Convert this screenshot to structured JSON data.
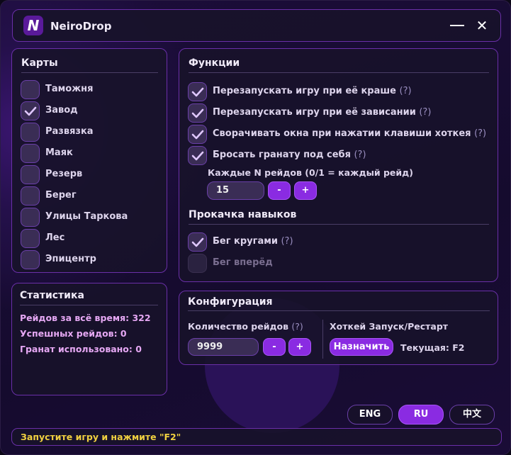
{
  "app": {
    "title": "NeiroDrop",
    "logo_letter": "N",
    "minimize_icon": "minimize-icon",
    "close_icon": "close-icon"
  },
  "maps": {
    "title": "Карты",
    "items": [
      {
        "label": "Таможня",
        "checked": false
      },
      {
        "label": "Завод",
        "checked": true
      },
      {
        "label": "Развязка",
        "checked": false
      },
      {
        "label": "Маяк",
        "checked": false
      },
      {
        "label": "Резерв",
        "checked": false
      },
      {
        "label": "Берег",
        "checked": false
      },
      {
        "label": "Улицы Таркова",
        "checked": false
      },
      {
        "label": "Лес",
        "checked": false
      },
      {
        "label": "Эпицентр",
        "checked": false
      }
    ]
  },
  "functions": {
    "title": "Функции",
    "help": "(?)",
    "items": [
      {
        "label": "Перезапускать игру при её краше",
        "checked": true
      },
      {
        "label": "Перезапускать игру при её зависании",
        "checked": true
      },
      {
        "label": "Сворачивать окна при нажатии клавиши хоткея",
        "checked": true
      },
      {
        "label": "Бросать гранату под себя",
        "checked": true
      }
    ],
    "every_n_label": "Каждые N рейдов (0/1 = каждый рейд)",
    "every_n_value": "15",
    "minus": "-",
    "plus": "+",
    "skills_title": "Прокачка навыков",
    "skills": [
      {
        "label": "Бег кругами",
        "checked": true,
        "help": true
      },
      {
        "label": "Бег вперёд",
        "checked": false,
        "disabled": true
      }
    ]
  },
  "stats": {
    "title": "Статистика",
    "lines": [
      "Рейдов за всё время: 322",
      "Успешных рейдов: 0",
      "Гранат использовано: 0"
    ]
  },
  "config": {
    "title": "Конфигурация",
    "raids_label": "Количество рейдов",
    "help": "(?)",
    "raids_value": "9999",
    "minus": "-",
    "plus": "+",
    "hotkey_label": "Хоткей Запуск/Рестарт",
    "assign": "Назначить",
    "current": "Текущая: F2"
  },
  "languages": [
    {
      "label": "ENG",
      "active": false
    },
    {
      "label": "RU",
      "active": true
    },
    {
      "label": "中文",
      "active": false
    }
  ],
  "status": "Запустите игру и нажмите \"F2\"",
  "colors": {
    "accent": "#8a2be2",
    "border": "#6a2fa8",
    "status": "#f0d040",
    "stats": "#e6a8f4"
  }
}
